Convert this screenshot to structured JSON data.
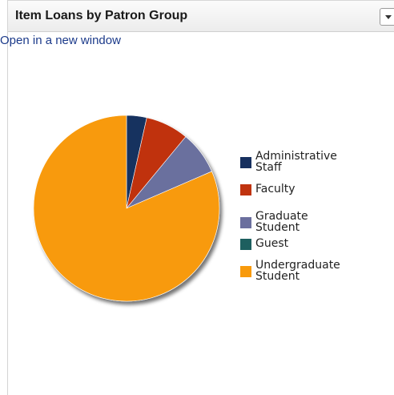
{
  "panel": {
    "title": "Item Loans by Patron Group",
    "menu_icon": "chevron-down-icon",
    "open_link": "Open in a new window"
  },
  "chart_data": {
    "type": "pie",
    "title": "",
    "legend_position": "right",
    "slices": [
      {
        "label": "Administrative Staff",
        "legend_lines": [
          "Administrative",
          "Staff"
        ],
        "value": 3.5,
        "color": "#17305f"
      },
      {
        "label": "Faculty",
        "legend_lines": [
          "Faculty"
        ],
        "value": 7.5,
        "color": "#c0330f"
      },
      {
        "label": "Graduate Student",
        "legend_lines": [
          "Graduate",
          "Student"
        ],
        "value": 7.5,
        "color": "#6b6f9e"
      },
      {
        "label": "Guest",
        "legend_lines": [
          "Guest"
        ],
        "value": 0,
        "color": "#1d5f5f"
      },
      {
        "label": "Undergraduate Student",
        "legend_lines": [
          "Undergraduate",
          "Student"
        ],
        "value": 81.5,
        "color": "#f89a0c"
      }
    ]
  }
}
